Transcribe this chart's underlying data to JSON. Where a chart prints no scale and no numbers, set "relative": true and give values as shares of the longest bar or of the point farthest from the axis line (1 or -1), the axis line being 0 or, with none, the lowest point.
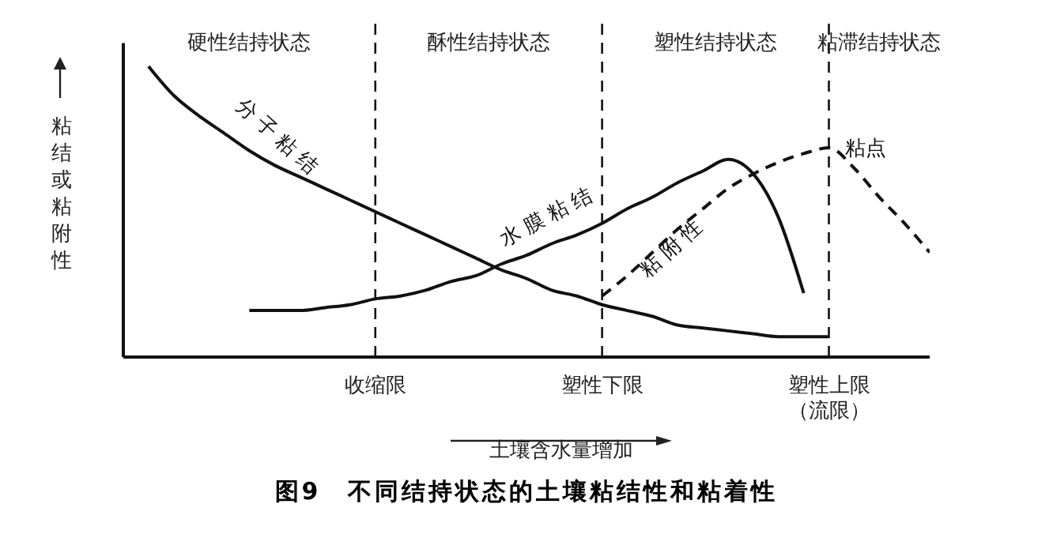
{
  "chart_data": {
    "type": "line",
    "title": "图9　不同结持状态的土壤粘结性和粘着性",
    "xlabel": "土壤含水量增加",
    "ylabel": "粘结或粘附性",
    "relative": true,
    "legend": false,
    "grid": false,
    "categories": [
      null,
      null,
      null,
      null,
      null,
      null,
      null,
      null,
      null,
      null,
      "收缩限",
      null,
      null,
      null,
      null,
      null,
      null,
      null,
      null,
      "塑性下限",
      null,
      null,
      null,
      null,
      null,
      null,
      null,
      null,
      "塑性上限（流限）",
      null,
      null,
      null,
      null
    ],
    "series": [
      {
        "name": "分子粘结",
        "color": "#111111",
        "line_style": "solid",
        "values": [
          null,
          1.0,
          0.9,
          0.83,
          0.77,
          0.71,
          0.66,
          0.62,
          0.58,
          0.54,
          0.5,
          0.46,
          0.42,
          0.38,
          0.34,
          0.3,
          0.27,
          0.23,
          0.21,
          0.18,
          0.16,
          0.14,
          0.11,
          0.1,
          0.09,
          0.08,
          0.07,
          0.07,
          0.07,
          null,
          null,
          null,
          null
        ]
      },
      {
        "name": "水膜粘结",
        "color": "#111111",
        "line_style": "solid",
        "values": [
          null,
          null,
          null,
          null,
          null,
          0.16,
          0.16,
          0.16,
          0.17,
          0.18,
          0.2,
          0.21,
          0.23,
          0.26,
          0.28,
          0.32,
          0.35,
          0.39,
          0.42,
          0.46,
          0.51,
          0.55,
          0.6,
          0.64,
          0.68,
          0.63,
          0.48,
          0.22,
          null,
          null,
          null,
          null,
          null
        ]
      },
      {
        "name": "粘附性",
        "color": "#111111",
        "line_style": "dashed",
        "values": [
          null,
          null,
          null,
          null,
          null,
          null,
          null,
          null,
          null,
          null,
          null,
          null,
          null,
          null,
          null,
          null,
          null,
          null,
          null,
          0.21,
          0.28,
          0.36,
          0.44,
          0.51,
          0.58,
          0.63,
          0.67,
          0.7,
          0.72,
          0.65,
          0.55,
          0.46,
          0.36
        ]
      }
    ],
    "ref_lines": [
      {
        "axis": "x",
        "value": "收缩限",
        "line_style": "dashed"
      },
      {
        "axis": "x",
        "value": "塑性下限",
        "line_style": "dashed"
      },
      {
        "axis": "x",
        "value": "塑性上限（流限）",
        "line_style": "dashed"
      }
    ],
    "annotations": [
      "硬性结持状态",
      "酥性结持状态",
      "塑性结持状态",
      "粘滞结持状态",
      {
        "text": "粘点",
        "x": "塑性上限（流限）",
        "y": 0.72
      }
    ]
  }
}
